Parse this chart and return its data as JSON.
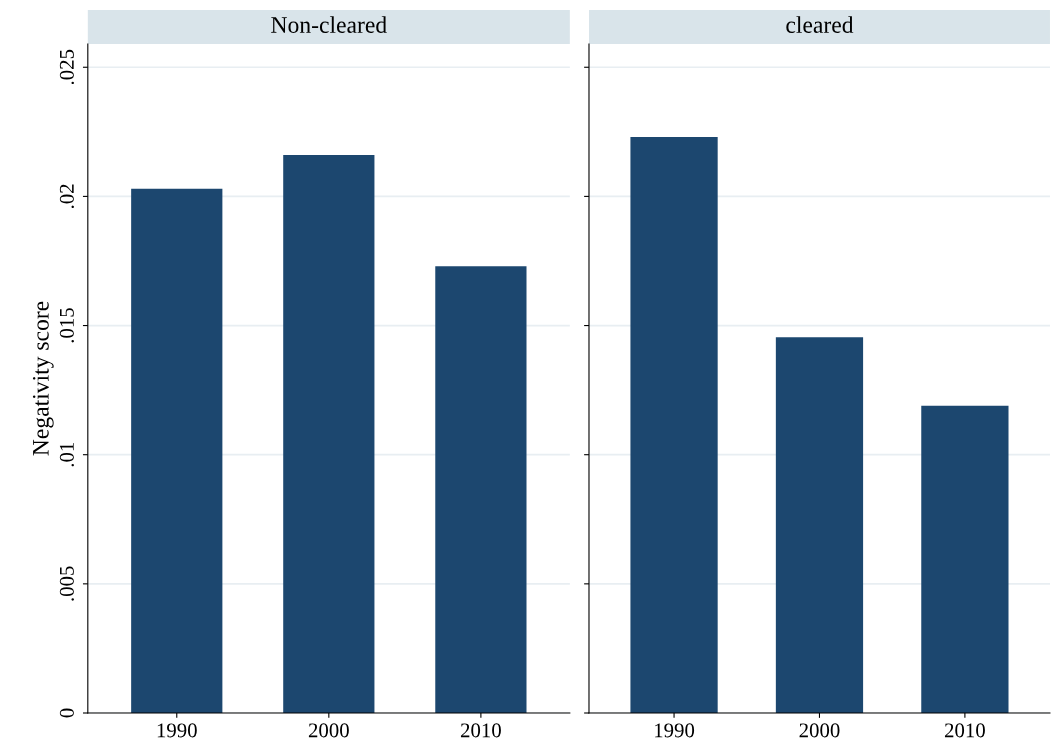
{
  "chart_data": [
    {
      "type": "bar",
      "title": "Non-cleared",
      "ylabel": "Negativity score",
      "categories": [
        "1990",
        "2000",
        "2010"
      ],
      "values": [
        0.0203,
        0.0216,
        0.0173
      ],
      "color": "#1c476f",
      "ylim": [
        0,
        0.0259
      ],
      "yticks": [
        0,
        {
          "value": 0.005,
          "label": ".005"
        },
        {
          "value": 0.01,
          "label": ".01"
        },
        {
          "value": 0.015,
          "label": ".015"
        },
        {
          "value": 0.02,
          "label": ".02"
        },
        {
          "value": 0.025,
          "label": ".025"
        }
      ],
      "grid": "y"
    },
    {
      "type": "bar",
      "title": "cleared",
      "categories": [
        "1990",
        "2000",
        "2010"
      ],
      "values": [
        0.0223,
        0.01455,
        0.0119
      ],
      "color": "#1c476f",
      "ylim": [
        0,
        0.0259
      ],
      "yticks": [
        {
          "value": 0,
          "label": null
        },
        {
          "value": 0.005,
          "label": null
        },
        {
          "value": 0.01,
          "label": null
        },
        {
          "value": 0.015,
          "label": null
        },
        {
          "value": 0.02,
          "label": null
        },
        {
          "value": 0.025,
          "label": null
        }
      ],
      "grid": "y",
      "tick_labels": "x"
    }
  ]
}
